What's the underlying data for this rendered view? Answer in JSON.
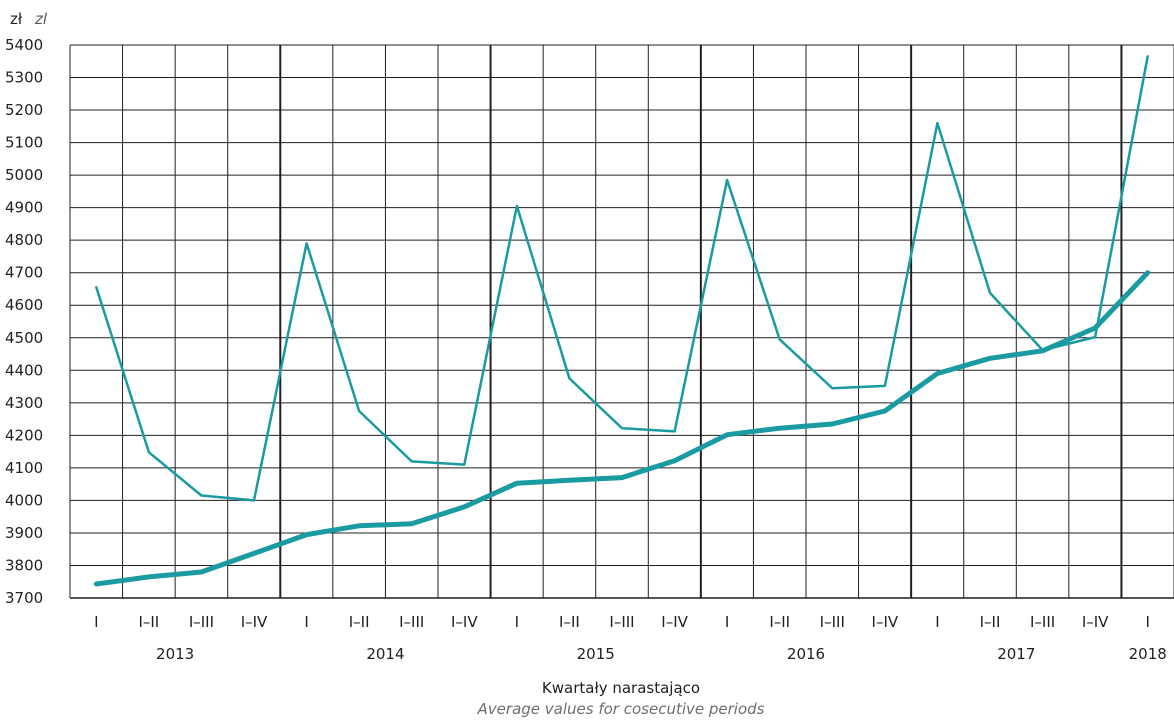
{
  "chart_data": {
    "type": "line",
    "unit_label": "zł",
    "unit_label_en": "zl",
    "xlabel": "Kwartały narastająco",
    "xlabel_en": "Average values for cosecutive periods",
    "ylim": [
      3700,
      5400
    ],
    "yticks": [
      3700,
      3800,
      3900,
      4000,
      4100,
      4200,
      4300,
      4400,
      4500,
      4600,
      4700,
      4800,
      4900,
      5000,
      5100,
      5200,
      5300,
      5400
    ],
    "categories": [
      "I",
      "I–II",
      "I–III",
      "I–IV",
      "I",
      "I–II",
      "I–III",
      "I–IV",
      "I",
      "I–II",
      "I–III",
      "I–IV",
      "I",
      "I–II",
      "I–III",
      "I–IV",
      "I",
      "I–II",
      "I–III",
      "I–IV",
      "I"
    ],
    "years": [
      "2013",
      "2014",
      "2015",
      "2016",
      "2017",
      "2018"
    ],
    "grid": true,
    "colors": {
      "series": "#1a9ba1",
      "grid": "#231f20",
      "text": "#231f20"
    },
    "series": [
      {
        "values": [
          4655,
          4148,
          4015,
          4000,
          4790,
          4275,
          4120,
          4110,
          4905,
          4375,
          4222,
          4212,
          4985,
          4495,
          4345,
          4352,
          5160,
          4638,
          4462,
          4502,
          5365
        ],
        "stroke_weight": "thin"
      },
      {
        "values": [
          3743,
          3765,
          3780,
          3837,
          3895,
          3922,
          3928,
          3980,
          4053,
          4062,
          4070,
          4122,
          4202,
          4222,
          4235,
          4275,
          4390,
          4437,
          4460,
          4530,
          4700
        ],
        "stroke_weight": "thick"
      }
    ]
  }
}
